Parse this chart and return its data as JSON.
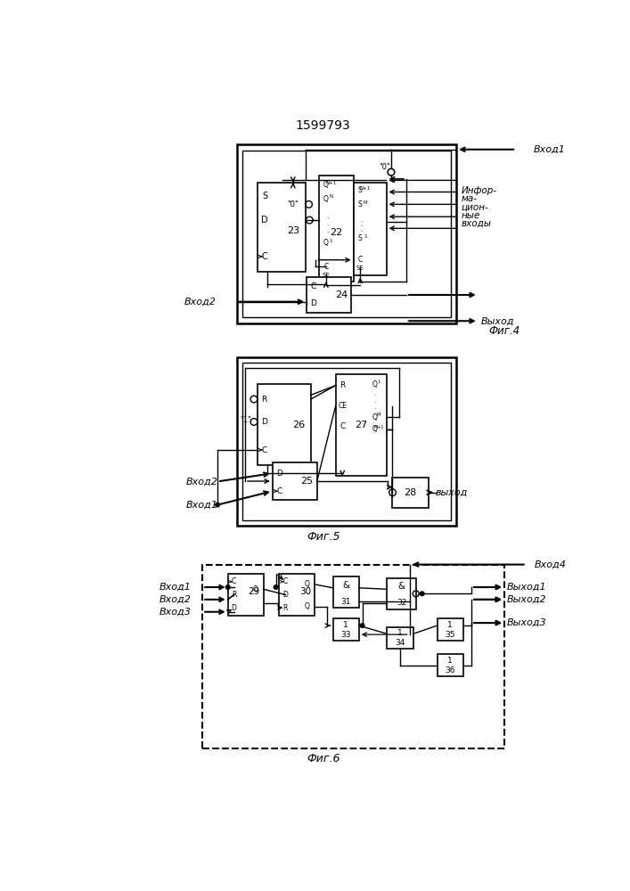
{
  "title": "1599793",
  "fig4_label": "Фиг.4",
  "fig5_label": "Фиг.5",
  "fig6_label": "Фиг.6",
  "bg": "#ffffff",
  "lc": "#000000"
}
